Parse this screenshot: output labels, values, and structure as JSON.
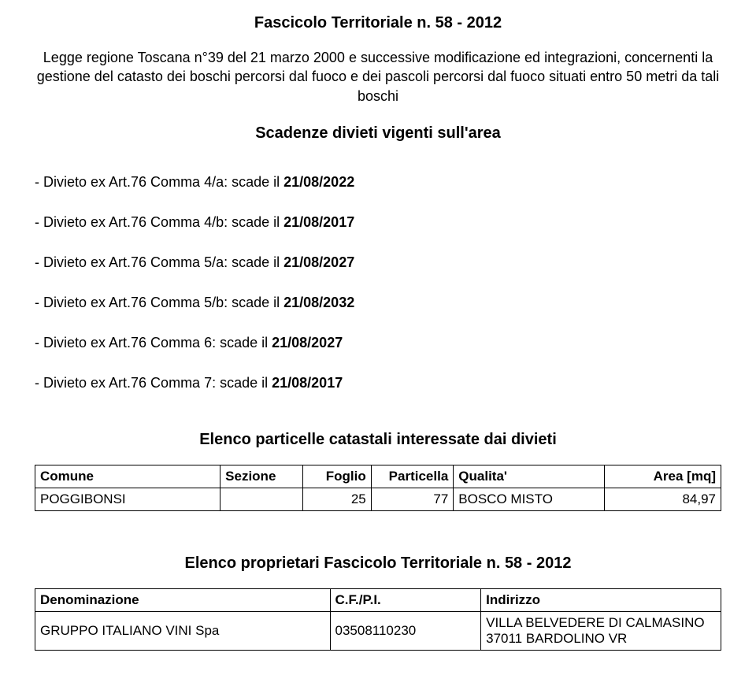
{
  "title": "Fascicolo Territoriale n. 58 - 2012",
  "intro": "Legge regione Toscana n°39 del 21 marzo 2000 e successive modificazione ed integrazioni, concernenti la gestione del catasto dei boschi percorsi dal fuoco e dei pascoli percorsi dal fuoco situati entro 50 metri da tali boschi",
  "scadenze_heading": "Scadenze divieti vigenti sull'area",
  "divieti": [
    {
      "prefix": "- Divieto ex Art.76 Comma 4/a: scade il ",
      "date": "21/08/2022"
    },
    {
      "prefix": "- Divieto ex Art.76 Comma 4/b: scade il ",
      "date": "21/08/2017"
    },
    {
      "prefix": "- Divieto ex Art.76 Comma 5/a: scade il ",
      "date": "21/08/2027"
    },
    {
      "prefix": "- Divieto ex Art.76 Comma 5/b: scade il ",
      "date": "21/08/2032"
    },
    {
      "prefix": "- Divieto ex Art.76 Comma 6: scade il ",
      "date": "21/08/2027"
    },
    {
      "prefix": "- Divieto ex Art.76 Comma 7: scade il ",
      "date": "21/08/2017"
    }
  ],
  "particelle_heading": "Elenco particelle catastali interessate dai divieti",
  "particelle_columns": {
    "comune": "Comune",
    "sezione": "Sezione",
    "foglio": "Foglio",
    "particella": "Particella",
    "qualita": "Qualita'",
    "area": "Area [mq]"
  },
  "particelle_rows": [
    {
      "comune": "POGGIBONSI",
      "sezione": "",
      "foglio": "25",
      "particella": "77",
      "qualita": "BOSCO MISTO",
      "area": "84,97"
    }
  ],
  "owners_heading": "Elenco proprietari Fascicolo Territoriale n. 58 - 2012",
  "owners_columns": {
    "denominazione": "Denominazione",
    "cf": "C.F./P.I.",
    "indirizzo": "Indirizzo"
  },
  "owners_rows": [
    {
      "denominazione": "GRUPPO ITALIANO VINI Spa",
      "cf": "03508110230",
      "indirizzo": "VILLA BELVEDERE DI CALMASINO 37011 BARDOLINO VR"
    }
  ]
}
